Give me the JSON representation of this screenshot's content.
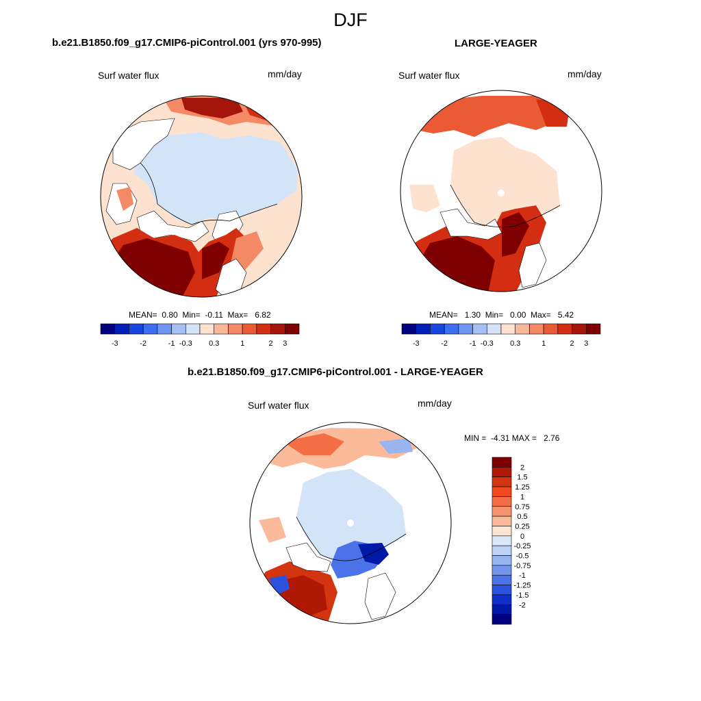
{
  "page": {
    "title": "DJF"
  },
  "panels": {
    "top_left": {
      "title": "b.e21.B1850.f09_g17.CMIP6-piControl.001 (yrs 970-995)",
      "variable": "Surf water flux",
      "units": "mm/day",
      "stats": {
        "mean_label": "MEAN=",
        "mean": "0.80",
        "min_label": "Min=",
        "min": "-0.11",
        "max_label": "Max=",
        "max": "6.82"
      }
    },
    "top_right": {
      "title": "LARGE-YEAGER",
      "variable": "Surf water flux",
      "units": "mm/day",
      "stats": {
        "mean_label": "MEAN=",
        "mean": "1.30",
        "min_label": "Min=",
        "min": "0.00",
        "max_label": "Max=",
        "max": "5.42"
      }
    },
    "bottom": {
      "title": "b.e21.B1850.f09_g17.CMIP6-piControl.001 - LARGE-YEAGER",
      "variable": "Surf water flux",
      "units": "mm/day",
      "stats": {
        "min_label": "MIN =",
        "min": "-4.31",
        "max_label": "MAX =",
        "max": "2.76"
      }
    }
  },
  "colorbars": {
    "horizontal": {
      "colors": [
        "#00007f",
        "#0020b8",
        "#1747e0",
        "#3d6df0",
        "#6d96f3",
        "#a6c0f5",
        "#d4e4f8",
        "#fde3cf",
        "#f9b79a",
        "#f48a65",
        "#ea5a34",
        "#d42e12",
        "#a5160a",
        "#7f0000"
      ],
      "labels": [
        "-3",
        "-2",
        "-1",
        "-0.3",
        "0.3",
        "1",
        "2",
        "3"
      ]
    },
    "vertical": {
      "colors": [
        "#7f0000",
        "#b01806",
        "#d43511",
        "#f0491d",
        "#f36e45",
        "#f7946e",
        "#fbbb9b",
        "#fde5d3",
        "#dbe8f8",
        "#bcd2f4",
        "#98b5ef",
        "#7396ec",
        "#4b73e9",
        "#2a52de",
        "#0f2fc8",
        "#001aa7",
        "#00007f"
      ],
      "labels": [
        "2",
        "1.5",
        "1.25",
        "1",
        "0.75",
        "0.5",
        "0.25",
        "0",
        "-0.25",
        "-0.5",
        "-0.75",
        "-1",
        "-1.25",
        "-1.5",
        "-2"
      ]
    }
  },
  "map_colors": {
    "land": "#ffffff",
    "coast": "#000000",
    "near_zero_blue": "#d4e4f8",
    "light_orange": "#fde3cf",
    "orange": "#f48a65",
    "red": "#d42e12",
    "dark_red": "#7f0000",
    "blue": "#3d6df0",
    "dark_blue": "#0020b8"
  }
}
